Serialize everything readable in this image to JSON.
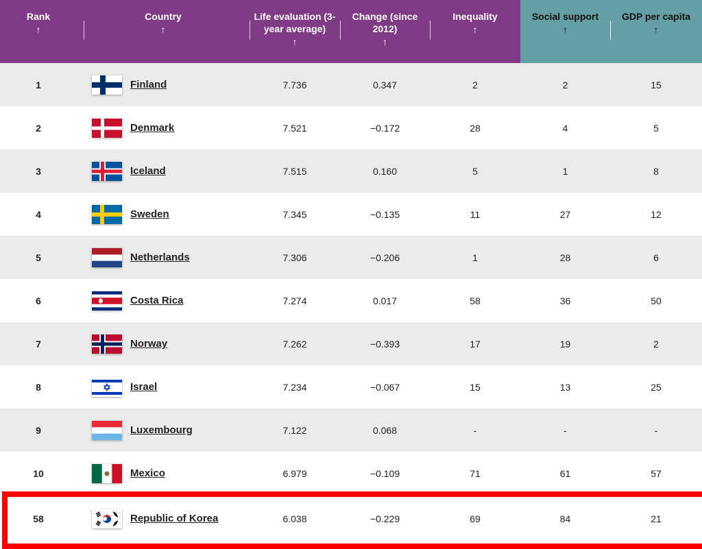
{
  "columns": [
    {
      "label": "Rank",
      "arrow": "↑"
    },
    {
      "label": "Country",
      "arrow": "↑"
    },
    {
      "label": "Life evaluation (3-year average)",
      "arrow": "↑"
    },
    {
      "label": "Change (since 2012)",
      "arrow": "↑"
    },
    {
      "label": "Inequality",
      "arrow": "↑"
    },
    {
      "label": "Social support",
      "arrow": "↑"
    },
    {
      "label": "GDP per capita",
      "arrow": "↑"
    }
  ],
  "colors": {
    "purple_header": "#7f3b85",
    "teal_header": "#669ea5",
    "highlight": "#ff0000",
    "row_alt": "#ebebeb"
  },
  "rows": [
    {
      "rank": "1",
      "country": "Finland",
      "flag": "finland-flag-icon",
      "life": "7.736",
      "change": "0.347",
      "inequality": "2",
      "social": "2",
      "gdp": "15"
    },
    {
      "rank": "2",
      "country": "Denmark",
      "flag": "denmark-flag-icon",
      "life": "7.521",
      "change": "−0.172",
      "inequality": "28",
      "social": "4",
      "gdp": "5"
    },
    {
      "rank": "3",
      "country": "Iceland",
      "flag": "iceland-flag-icon",
      "life": "7.515",
      "change": "0.160",
      "inequality": "5",
      "social": "1",
      "gdp": "8"
    },
    {
      "rank": "4",
      "country": "Sweden",
      "flag": "sweden-flag-icon",
      "life": "7.345",
      "change": "−0.135",
      "inequality": "11",
      "social": "27",
      "gdp": "12"
    },
    {
      "rank": "5",
      "country": "Netherlands",
      "flag": "netherlands-flag-icon",
      "life": "7.306",
      "change": "−0.206",
      "inequality": "1",
      "social": "28",
      "gdp": "6"
    },
    {
      "rank": "6",
      "country": "Costa Rica",
      "flag": "costa-rica-flag-icon",
      "life": "7.274",
      "change": "0.017",
      "inequality": "58",
      "social": "36",
      "gdp": "50"
    },
    {
      "rank": "7",
      "country": "Norway",
      "flag": "norway-flag-icon",
      "life": "7.262",
      "change": "−0.393",
      "inequality": "17",
      "social": "19",
      "gdp": "2"
    },
    {
      "rank": "8",
      "country": "Israel",
      "flag": "israel-flag-icon",
      "life": "7.234",
      "change": "−0.067",
      "inequality": "15",
      "social": "13",
      "gdp": "25"
    },
    {
      "rank": "9",
      "country": "Luxembourg",
      "flag": "luxembourg-flag-icon",
      "life": "7.122",
      "change": "0.068",
      "inequality": "-",
      "social": "-",
      "gdp": "-"
    },
    {
      "rank": "10",
      "country": "Mexico",
      "flag": "mexico-flag-icon",
      "life": "6.979",
      "change": "−0.109",
      "inequality": "71",
      "social": "61",
      "gdp": "57"
    }
  ],
  "highlighted_row": {
    "rank": "58",
    "country": "Republic of Korea",
    "flag": "south-korea-flag-icon",
    "life": "6.038",
    "change": "−0.229",
    "inequality": "69",
    "social": "84",
    "gdp": "21"
  }
}
